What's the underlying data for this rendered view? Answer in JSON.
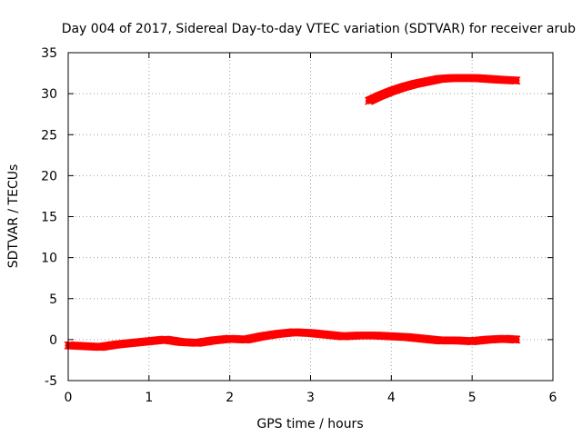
{
  "chart_data": {
    "type": "scatter",
    "title": "Day 004 of 2017, Sidereal Day-to-day VTEC variation (SDTVAR) for receiver arub",
    "xlabel": "GPS time / hours",
    "ylabel": "SDTVAR / TECUs",
    "xlim": [
      0,
      6
    ],
    "ylim": [
      -5,
      35
    ],
    "xticks": [
      "0",
      "1",
      "2",
      "3",
      "4",
      "5",
      "6"
    ],
    "yticks": [
      "-5",
      "0",
      "5",
      "10",
      "15",
      "20",
      "25",
      "30",
      "35"
    ],
    "grid": true,
    "marker": "cross",
    "series": [
      {
        "color": "#ff0000",
        "x": [
          0.0,
          0.2,
          0.4,
          0.6,
          0.8,
          1.0,
          1.2,
          1.4,
          1.6,
          1.8,
          2.0,
          2.2,
          2.4,
          2.6,
          2.8,
          3.0,
          3.2,
          3.4,
          3.6,
          3.8,
          4.0,
          4.2,
          4.4,
          4.6,
          4.8,
          5.0,
          5.2,
          5.4,
          5.55
        ],
        "y": [
          -0.7,
          -0.8,
          -0.9,
          -0.6,
          -0.4,
          -0.2,
          0.0,
          -0.3,
          -0.4,
          -0.1,
          0.1,
          0.0,
          0.4,
          0.7,
          0.9,
          0.8,
          0.6,
          0.4,
          0.5,
          0.5,
          0.4,
          0.3,
          0.1,
          -0.1,
          -0.1,
          -0.2,
          0.0,
          0.1,
          0.0
        ]
      },
      {
        "color": "#ff0000",
        "x": [
          3.72,
          3.85,
          4.0,
          4.15,
          4.3,
          4.45,
          4.6,
          4.75,
          4.9,
          5.05,
          5.2,
          5.35,
          5.55
        ],
        "y": [
          29.1,
          29.7,
          30.3,
          30.8,
          31.2,
          31.5,
          31.8,
          31.9,
          31.9,
          31.9,
          31.8,
          31.7,
          31.6
        ]
      }
    ]
  }
}
